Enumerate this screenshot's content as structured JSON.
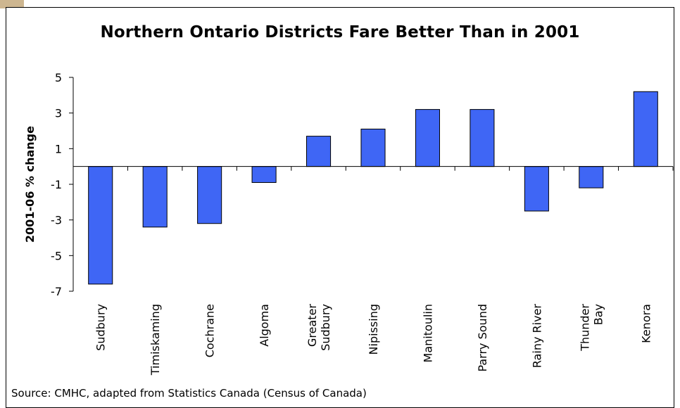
{
  "chart_data": {
    "type": "bar",
    "title": "Northern Ontario Districts Fare Better Than in 2001",
    "ylabel": "2001-06 % change",
    "xlabel": "",
    "categories": [
      [
        "Sudbury"
      ],
      [
        "Timiskaming"
      ],
      [
        "Cochrane"
      ],
      [
        "Algoma"
      ],
      [
        "Greater",
        "Sudbury"
      ],
      [
        "Nipissing"
      ],
      [
        "Manitoulin"
      ],
      [
        "Parry Sound"
      ],
      [
        "Rainy River"
      ],
      [
        "Thunder",
        "Bay"
      ],
      [
        "Kenora"
      ]
    ],
    "values": [
      -6.6,
      -3.4,
      -3.2,
      -0.9,
      1.7,
      2.1,
      3.2,
      3.2,
      -2.5,
      -1.2,
      4.2
    ],
    "yticks": [
      5,
      3,
      1,
      -1,
      -3,
      -5,
      -7
    ],
    "ylim": [
      -7,
      5
    ],
    "grid": false,
    "bar_color": "#3f66f5"
  },
  "source": "Source: CMHC, adapted from Statistics Canada (Census of Canada)"
}
